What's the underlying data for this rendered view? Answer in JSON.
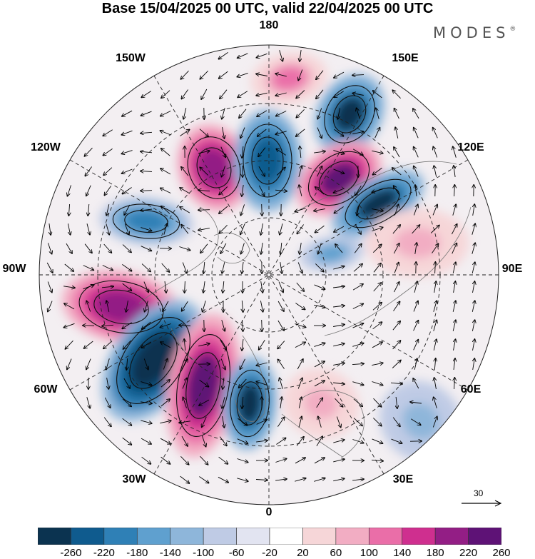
{
  "title": "Base 15/04/2025 00 UTC, valid 22/04/2025 00 UTC",
  "logo": {
    "text": "MODES",
    "mark": "®"
  },
  "map": {
    "projection": "north-polar-stereographic",
    "longitude_labels": [
      "180",
      "150E",
      "120E",
      "90E",
      "60E",
      "30E",
      "0",
      "30W",
      "60W",
      "90W",
      "120W",
      "150W"
    ],
    "anomaly_centers": [
      {
        "name": "ridge-pacific-north",
        "sign": "positive",
        "peak": 100
      },
      {
        "name": "trough-pacific-150e",
        "sign": "negative",
        "peak": -220
      },
      {
        "name": "ridge-alaska-west",
        "sign": "positive",
        "peak": 180
      },
      {
        "name": "trough-alaska",
        "sign": "negative",
        "peak": -180
      },
      {
        "name": "ridge-siberia-east",
        "sign": "positive",
        "peak": 220
      },
      {
        "name": "trough-siberia-east",
        "sign": "negative",
        "peak": -220
      },
      {
        "name": "trough-canada-west",
        "sign": "negative",
        "peak": -140
      },
      {
        "name": "ridge-canada-east",
        "sign": "positive",
        "peak": 180
      },
      {
        "name": "trough-north-atlantic-west",
        "sign": "negative",
        "peak": -260
      },
      {
        "name": "ridge-north-atlantic",
        "sign": "positive",
        "peak": 220
      },
      {
        "name": "trough-greenland-iceland",
        "sign": "negative",
        "peak": -220
      },
      {
        "name": "trough-barents",
        "sign": "negative",
        "peak": -100
      },
      {
        "name": "ridge-ural",
        "sign": "positive",
        "peak": 60
      },
      {
        "name": "ridge-europe",
        "sign": "positive",
        "peak": 60
      },
      {
        "name": "trough-eurasia",
        "sign": "negative",
        "peak": -60
      }
    ]
  },
  "vector_scale": {
    "label": "30"
  },
  "colorbar": {
    "tick_labels": [
      "-260",
      "-220",
      "-180",
      "-140",
      "-100",
      "-60",
      "-20",
      "20",
      "60",
      "100",
      "140",
      "180",
      "220",
      "260"
    ],
    "colors": [
      "#0b3350",
      "#0f5b8e",
      "#2f80b6",
      "#5fa0cf",
      "#8eb6da",
      "#bfcbe5",
      "#e2e4f1",
      "#ffffff",
      "#f6d6d8",
      "#f2adc3",
      "#ea6ea8",
      "#cf2f8f",
      "#931e85",
      "#5e1276"
    ]
  }
}
